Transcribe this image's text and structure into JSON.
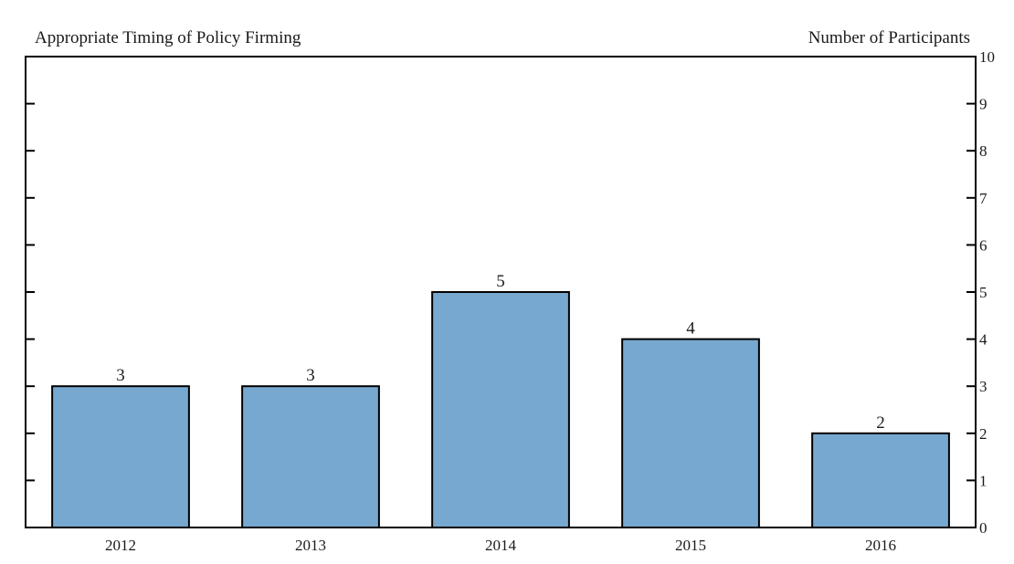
{
  "chart_data": {
    "type": "bar",
    "title": "Appropriate Timing of Policy Firming",
    "right_axis_title": "Number of Participants",
    "categories": [
      "2012",
      "2013",
      "2014",
      "2015",
      "2016"
    ],
    "values": [
      3,
      3,
      5,
      4,
      2
    ],
    "data_labels": [
      "3",
      "3",
      "5",
      "4",
      "2"
    ],
    "ylim": [
      0,
      10
    ],
    "yticks": [
      0,
      1,
      2,
      3,
      4,
      5,
      6,
      7,
      8,
      9,
      10
    ],
    "y_axis_side": "right",
    "grid": false,
    "legend": "none",
    "bar_color": "#77a8cf",
    "bar_edge_color": "#000000"
  }
}
